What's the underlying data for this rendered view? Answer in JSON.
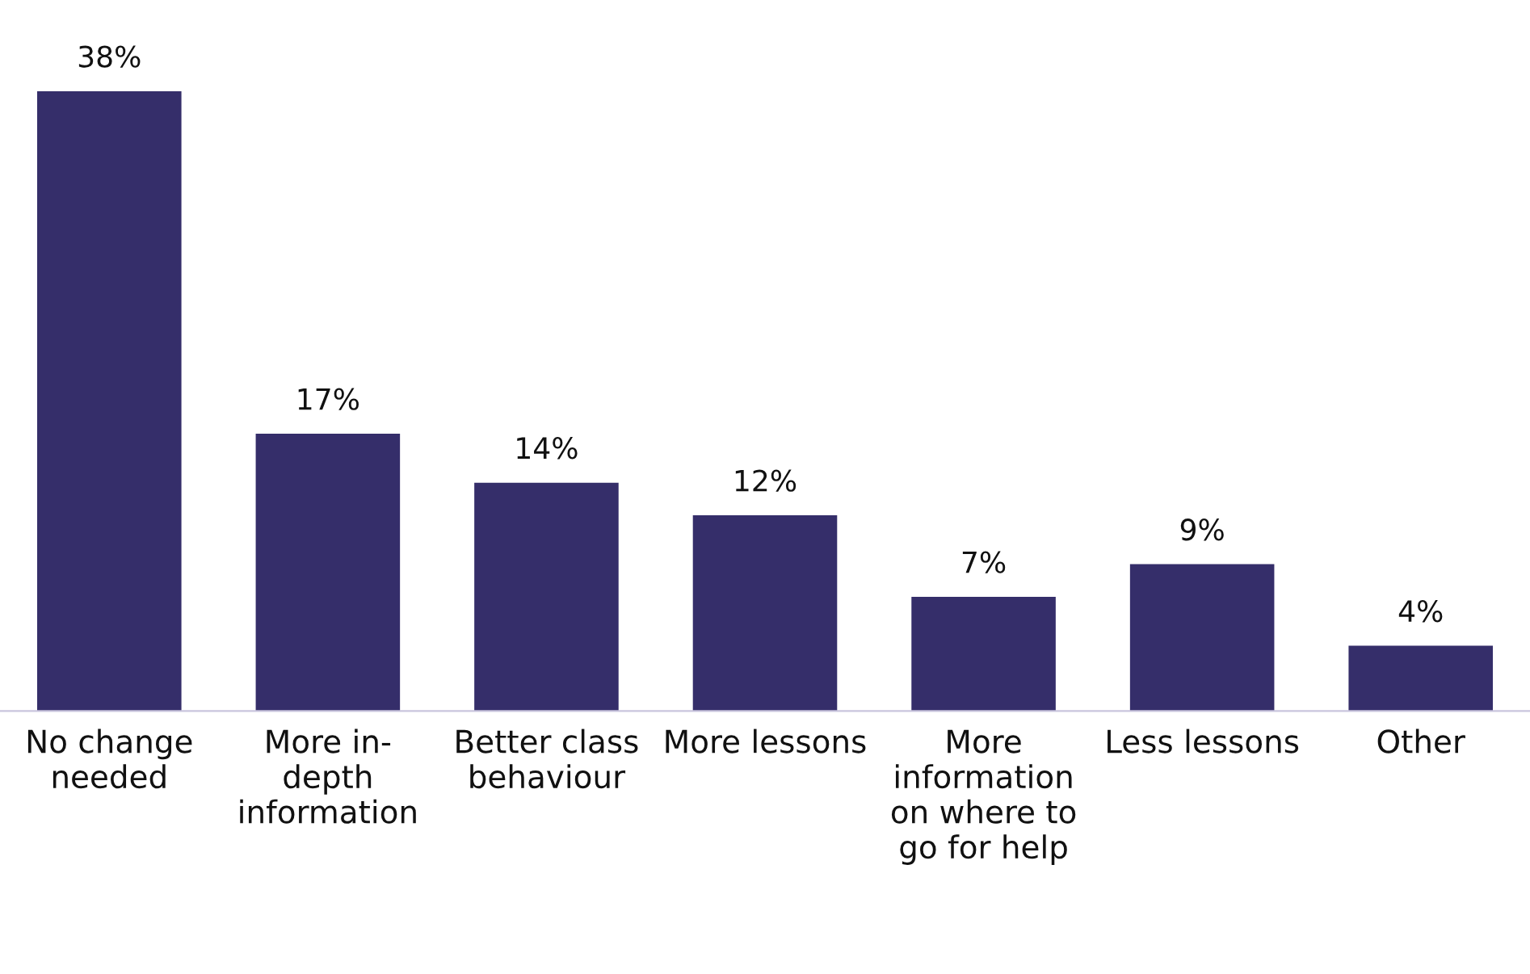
{
  "chart_data": {
    "type": "bar",
    "categories": [
      "No change\nneeded",
      "More in-\ndepth\ninformation",
      "Better class\nbehaviour",
      "More lessons",
      "More\ninformation\non where to\ngo for help",
      "Less lessons",
      "Other"
    ],
    "values": [
      38,
      17,
      14,
      12,
      7,
      9,
      4
    ],
    "value_labels": [
      "38%",
      "17%",
      "14%",
      "12%",
      "7%",
      "9%",
      "4%"
    ],
    "color": "#352e6a",
    "tick_labels": "x",
    "grid": false,
    "legend": false
  }
}
